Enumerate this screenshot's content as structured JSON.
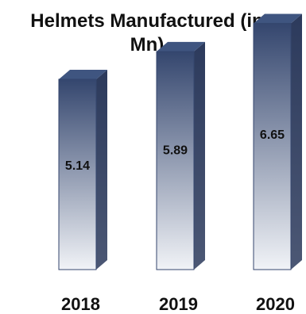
{
  "chart_data": {
    "type": "bar",
    "title": "Helmets Manufactured (in\nMn)",
    "categories": [
      "2018",
      "2019",
      "2020"
    ],
    "values": [
      5.14,
      5.89,
      6.65
    ],
    "data_labels": [
      "5.14",
      "5.89",
      "6.65"
    ],
    "xlabel": "",
    "ylabel": "",
    "grid": false,
    "legend": "none"
  },
  "colors": {
    "bar_top": "#34466e",
    "bar_bottom": "#f1f3f7",
    "bar_side": "#2c3a5c",
    "bar_cap": "#3f5580",
    "text": "#111111"
  }
}
